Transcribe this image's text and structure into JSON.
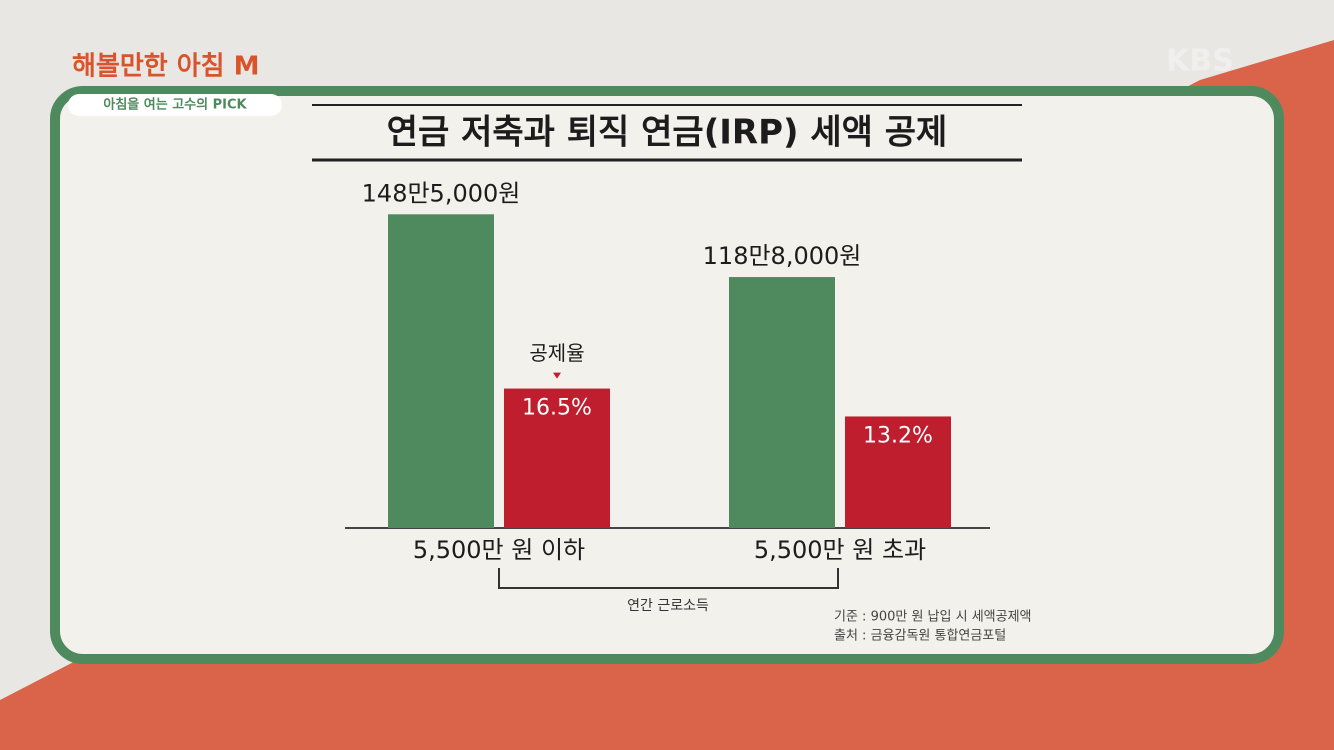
{
  "chart_data": {
    "type": "bar",
    "logo": "해볼만한 아침 M",
    "tag": "아침을 여는 고수의 PICK",
    "watermark": "KBS",
    "title": "연금 저축과 퇴직 연금(IRP) 세액 공제",
    "categories": [
      "5,500만 원 이하",
      "5,500만 원 초과"
    ],
    "xlabel": "연간 근로소득",
    "annotation": "공제율",
    "series": [
      {
        "color": "#4e8a5e",
        "values": [
          1485000,
          1188000
        ],
        "value_labels": [
          "148만5,000원",
          "118만8,000원"
        ]
      },
      {
        "color": "#be1e2d",
        "axis": "y2",
        "values": [
          16.5,
          13.2
        ],
        "value_labels": [
          "16.5%",
          "13.2%"
        ]
      }
    ],
    "ylim": [
      0,
      1600000
    ],
    "y2lim": [
      0,
      40
    ],
    "notes": [
      "기준 : 900만 원 납입 시 세액공제액",
      "출처 : 금융감독원 통합연금포털"
    ]
  }
}
